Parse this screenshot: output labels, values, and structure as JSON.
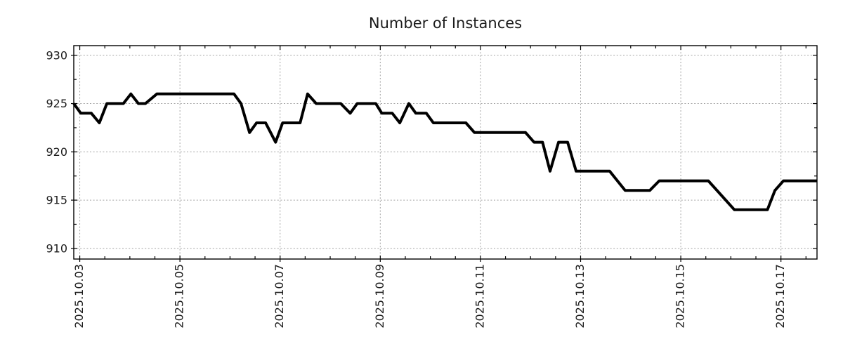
{
  "page": {
    "background": "#ffffff"
  },
  "chart_data": {
    "type": "line",
    "title": "Number of Instances",
    "xlabel": "",
    "ylabel": "",
    "legend": "none",
    "grid": "dotted-at-major-ticks-both-axes",
    "line_color": "#000000",
    "grid_color": "#a3a3a3",
    "x_units": "day of 2025-10 (fractional)",
    "xlim": [
      2.88,
      17.72
    ],
    "ylim": [
      908.9,
      931.0
    ],
    "x_tick_values": [
      3,
      5,
      7,
      9,
      11,
      13,
      15,
      17
    ],
    "x_tick_labels": [
      "2025.10.03",
      "2025.10.05",
      "2025.10.07",
      "2025.10.09",
      "2025.10.11",
      "2025.10.13",
      "2025.10.15",
      "2025.10.17"
    ],
    "x_minor_tick_step": 0.5,
    "y_tick_values": [
      910,
      915,
      920,
      925,
      930
    ],
    "y_minor_tick_step": 2.5,
    "points": [
      [
        2.88,
        925
      ],
      [
        3.02,
        924
      ],
      [
        3.23,
        924
      ],
      [
        3.39,
        923
      ],
      [
        3.54,
        925
      ],
      [
        3.87,
        925
      ],
      [
        4.02,
        926
      ],
      [
        4.17,
        925
      ],
      [
        4.31,
        925
      ],
      [
        4.54,
        926
      ],
      [
        6.08,
        926
      ],
      [
        6.22,
        925
      ],
      [
        6.39,
        922
      ],
      [
        6.53,
        923
      ],
      [
        6.71,
        923
      ],
      [
        6.91,
        921
      ],
      [
        7.05,
        923
      ],
      [
        7.4,
        923
      ],
      [
        7.55,
        926
      ],
      [
        7.72,
        925
      ],
      [
        8.21,
        925
      ],
      [
        8.4,
        924
      ],
      [
        8.54,
        925
      ],
      [
        8.91,
        925
      ],
      [
        9.03,
        924
      ],
      [
        9.24,
        924
      ],
      [
        9.39,
        923
      ],
      [
        9.57,
        925
      ],
      [
        9.71,
        924
      ],
      [
        9.92,
        924
      ],
      [
        10.06,
        923
      ],
      [
        10.71,
        923
      ],
      [
        10.88,
        922
      ],
      [
        11.9,
        922
      ],
      [
        12.07,
        921
      ],
      [
        12.24,
        921
      ],
      [
        12.39,
        918
      ],
      [
        12.56,
        921
      ],
      [
        12.74,
        921
      ],
      [
        12.91,
        918
      ],
      [
        13.58,
        918
      ],
      [
        13.89,
        916
      ],
      [
        14.38,
        916
      ],
      [
        14.57,
        917
      ],
      [
        15.55,
        917
      ],
      [
        16.07,
        914
      ],
      [
        16.73,
        914
      ],
      [
        16.88,
        916
      ],
      [
        17.05,
        917
      ],
      [
        17.72,
        917
      ]
    ]
  }
}
